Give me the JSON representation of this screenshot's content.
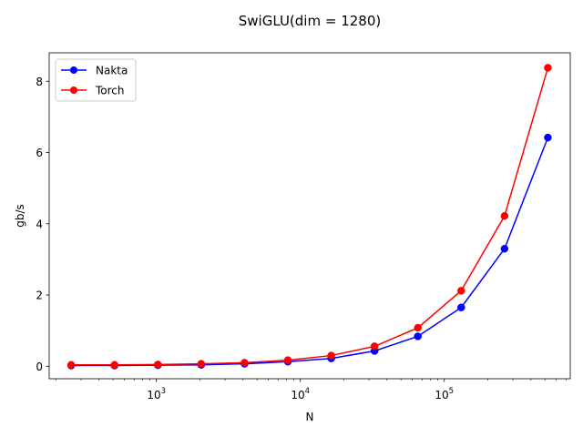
{
  "chart_data": {
    "type": "line",
    "title": "SwiGLU(dim = 1280)",
    "xlabel": "N",
    "ylabel": "gb/s",
    "xscale": "log",
    "xlim": [
      180,
      750000
    ],
    "ylim": [
      -0.35,
      8.8
    ],
    "x": [
      256,
      512,
      1024,
      2048,
      4096,
      8192,
      16384,
      32768,
      65536,
      131072,
      262144,
      524288
    ],
    "series": [
      {
        "name": "Nakta",
        "color": "#0000ff",
        "values": [
          0.02,
          0.02,
          0.03,
          0.04,
          0.07,
          0.13,
          0.22,
          0.43,
          0.84,
          1.65,
          3.3,
          6.42
        ]
      },
      {
        "name": "Torch",
        "color": "#ff0000",
        "values": [
          0.04,
          0.04,
          0.05,
          0.07,
          0.1,
          0.17,
          0.3,
          0.56,
          1.08,
          2.12,
          4.22,
          8.38
        ]
      }
    ],
    "x_ticks": [
      {
        "base": "10",
        "exp": "3",
        "value": 1000
      },
      {
        "base": "10",
        "exp": "4",
        "value": 10000
      },
      {
        "base": "10",
        "exp": "5",
        "value": 100000
      }
    ],
    "y_ticks": [
      "0",
      "2",
      "4",
      "6",
      "8"
    ],
    "grid": false,
    "legend": "top-left"
  }
}
